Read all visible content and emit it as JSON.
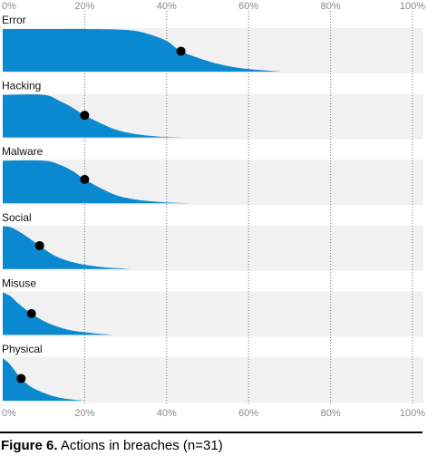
{
  "chart_data": {
    "type": "area",
    "title": "",
    "x_unit": "%",
    "xlim": [
      0,
      100
    ],
    "x_ticks": [
      "0%",
      "20%",
      "40%",
      "60%",
      "80%",
      "100%"
    ],
    "grid": true,
    "colors": {
      "fill": "#0a89d0",
      "panel_bg": "#f1f1f1",
      "grid": "#777777",
      "dot": "#000000"
    },
    "series": [
      {
        "name": "Error",
        "dot_x": 43.5,
        "density": [
          [
            0,
            1
          ],
          [
            15,
            1
          ],
          [
            20,
            1
          ],
          [
            30,
            0.98
          ],
          [
            35,
            0.9
          ],
          [
            40,
            0.72
          ],
          [
            43.5,
            0.48
          ],
          [
            50,
            0.25
          ],
          [
            55,
            0.13
          ],
          [
            60,
            0.06
          ],
          [
            65,
            0.02
          ],
          [
            68,
            0
          ]
        ]
      },
      {
        "name": "Hacking",
        "dot_x": 20,
        "density": [
          [
            0,
            1
          ],
          [
            10,
            1
          ],
          [
            14,
            0.85
          ],
          [
            17,
            0.7
          ],
          [
            20,
            0.52
          ],
          [
            24,
            0.33
          ],
          [
            28,
            0.17
          ],
          [
            33,
            0.07
          ],
          [
            38,
            0.02
          ],
          [
            44,
            0
          ]
        ]
      },
      {
        "name": "Malware",
        "dot_x": 20,
        "density": [
          [
            0,
            1
          ],
          [
            10,
            1
          ],
          [
            14,
            0.9
          ],
          [
            17,
            0.76
          ],
          [
            20,
            0.56
          ],
          [
            24,
            0.35
          ],
          [
            28,
            0.18
          ],
          [
            33,
            0.08
          ],
          [
            40,
            0.02
          ],
          [
            46,
            0
          ]
        ]
      },
      {
        "name": "Social",
        "dot_x": 9,
        "density": [
          [
            0,
            1
          ],
          [
            2,
            0.98
          ],
          [
            5,
            0.82
          ],
          [
            9,
            0.55
          ],
          [
            13,
            0.3
          ],
          [
            18,
            0.14
          ],
          [
            24,
            0.05
          ],
          [
            30,
            0.01
          ],
          [
            32,
            0
          ]
        ]
      },
      {
        "name": "Misuse",
        "dot_x": 7,
        "density": [
          [
            0,
            1
          ],
          [
            2,
            0.9
          ],
          [
            4,
            0.72
          ],
          [
            7,
            0.5
          ],
          [
            11,
            0.28
          ],
          [
            16,
            0.12
          ],
          [
            22,
            0.04
          ],
          [
            27,
            0
          ]
        ]
      },
      {
        "name": "Physical",
        "dot_x": 4.5,
        "density": [
          [
            0,
            1
          ],
          [
            1.5,
            0.88
          ],
          [
            3,
            0.7
          ],
          [
            4.5,
            0.52
          ],
          [
            7,
            0.32
          ],
          [
            11,
            0.15
          ],
          [
            15,
            0.05
          ],
          [
            20,
            0
          ]
        ]
      }
    ]
  },
  "caption": {
    "figure": "Figure 6.",
    "text": " Actions in breaches (n=31)"
  }
}
